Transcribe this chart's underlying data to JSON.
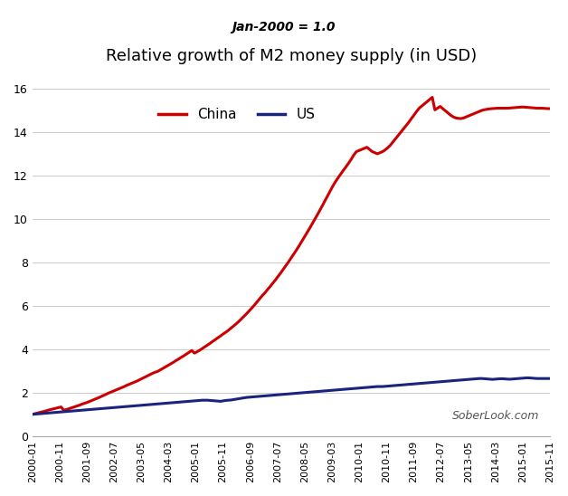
{
  "title": "Relative growth of M2 money supply (in USD)",
  "subtitle": "Jan-2000 = 1.0",
  "watermark": "SoberLook.com",
  "china_color": "#cc0000",
  "us_color": "#1a237e",
  "line_width": 2.2,
  "ylim": [
    0,
    16
  ],
  "yticks": [
    0,
    2,
    4,
    6,
    8,
    10,
    12,
    14,
    16
  ],
  "background_color": "#ffffff",
  "grid_color": "#cccccc",
  "x_labels": [
    "2000-01",
    "2000-11",
    "2001-09",
    "2002-07",
    "2003-05",
    "2004-03",
    "2005-01",
    "2005-11",
    "2006-09",
    "2007-07",
    "2008-05",
    "2009-03",
    "2010-01",
    "2010-11",
    "2011-09",
    "2012-07",
    "2013-05",
    "2014-03",
    "2015-01",
    "2015-11"
  ],
  "china_y": [
    1.0,
    1.03,
    1.06,
    1.09,
    1.12,
    1.15,
    1.19,
    1.22,
    1.25,
    1.28,
    1.31,
    1.34,
    1.19,
    1.22,
    1.26,
    1.3,
    1.34,
    1.38,
    1.42,
    1.47,
    1.51,
    1.55,
    1.6,
    1.65,
    1.7,
    1.75,
    1.8,
    1.86,
    1.91,
    1.97,
    2.02,
    2.07,
    2.12,
    2.17,
    2.22,
    2.27,
    2.33,
    2.38,
    2.43,
    2.48,
    2.53,
    2.59,
    2.65,
    2.71,
    2.77,
    2.83,
    2.89,
    2.94,
    2.98,
    3.05,
    3.12,
    3.19,
    3.26,
    3.33,
    3.4,
    3.48,
    3.55,
    3.63,
    3.7,
    3.78,
    3.86,
    3.94,
    3.82,
    3.88,
    3.95,
    4.03,
    4.11,
    4.19,
    4.27,
    4.36,
    4.44,
    4.53,
    4.61,
    4.7,
    4.78,
    4.87,
    4.97,
    5.07,
    5.17,
    5.28,
    5.4,
    5.52,
    5.64,
    5.77,
    5.9,
    6.04,
    6.18,
    6.33,
    6.47,
    6.6,
    6.75,
    6.89,
    7.04,
    7.19,
    7.35,
    7.51,
    7.68,
    7.85,
    8.02,
    8.2,
    8.38,
    8.56,
    8.75,
    8.95,
    9.15,
    9.35,
    9.55,
    9.76,
    9.97,
    10.18,
    10.4,
    10.62,
    10.85,
    11.07,
    11.3,
    11.52,
    11.72,
    11.9,
    12.07,
    12.24,
    12.4,
    12.57,
    12.75,
    12.95,
    13.1,
    13.15,
    13.2,
    13.25,
    13.3,
    13.2,
    13.1,
    13.05,
    13.0,
    13.05,
    13.1,
    13.18,
    13.28,
    13.4,
    13.55,
    13.7,
    13.85,
    14.0,
    14.15,
    14.3,
    14.45,
    14.62,
    14.78,
    14.95,
    15.1,
    15.2,
    15.3,
    15.4,
    15.5,
    15.6,
    15.02,
    15.1,
    15.18,
    15.08,
    14.98,
    14.88,
    14.78,
    14.7,
    14.65,
    14.63,
    14.62,
    14.65,
    14.7,
    14.75,
    14.8,
    14.85,
    14.9,
    14.95,
    15.0,
    15.03,
    15.05,
    15.07,
    15.08,
    15.09,
    15.1,
    15.1,
    15.1,
    15.1,
    15.1,
    15.11,
    15.12,
    15.13,
    15.14,
    15.15,
    15.15,
    15.14,
    15.13,
    15.12,
    15.11,
    15.1,
    15.1,
    15.1,
    15.09,
    15.08,
    15.08
  ],
  "us_y": [
    1.0,
    1.01,
    1.02,
    1.03,
    1.04,
    1.05,
    1.06,
    1.07,
    1.08,
    1.09,
    1.1,
    1.11,
    1.12,
    1.13,
    1.14,
    1.15,
    1.16,
    1.17,
    1.18,
    1.19,
    1.2,
    1.21,
    1.22,
    1.23,
    1.24,
    1.25,
    1.26,
    1.27,
    1.28,
    1.29,
    1.3,
    1.31,
    1.32,
    1.33,
    1.34,
    1.35,
    1.36,
    1.37,
    1.38,
    1.39,
    1.4,
    1.41,
    1.42,
    1.43,
    1.44,
    1.45,
    1.46,
    1.47,
    1.48,
    1.49,
    1.5,
    1.51,
    1.52,
    1.53,
    1.54,
    1.55,
    1.56,
    1.57,
    1.58,
    1.59,
    1.6,
    1.61,
    1.62,
    1.63,
    1.64,
    1.65,
    1.65,
    1.65,
    1.64,
    1.63,
    1.62,
    1.61,
    1.6,
    1.62,
    1.64,
    1.65,
    1.66,
    1.68,
    1.7,
    1.72,
    1.74,
    1.76,
    1.78,
    1.79,
    1.8,
    1.81,
    1.82,
    1.83,
    1.84,
    1.85,
    1.86,
    1.87,
    1.88,
    1.89,
    1.9,
    1.91,
    1.92,
    1.93,
    1.94,
    1.95,
    1.96,
    1.97,
    1.98,
    1.99,
    2.0,
    2.01,
    2.02,
    2.03,
    2.04,
    2.05,
    2.06,
    2.07,
    2.08,
    2.09,
    2.1,
    2.11,
    2.12,
    2.13,
    2.14,
    2.15,
    2.16,
    2.17,
    2.18,
    2.19,
    2.2,
    2.21,
    2.22,
    2.23,
    2.24,
    2.25,
    2.26,
    2.27,
    2.28,
    2.28,
    2.28,
    2.29,
    2.3,
    2.31,
    2.32,
    2.33,
    2.34,
    2.35,
    2.36,
    2.37,
    2.38,
    2.39,
    2.4,
    2.41,
    2.42,
    2.43,
    2.44,
    2.45,
    2.46,
    2.47,
    2.48,
    2.49,
    2.5,
    2.51,
    2.52,
    2.53,
    2.54,
    2.55,
    2.56,
    2.57,
    2.58,
    2.59,
    2.6,
    2.61,
    2.62,
    2.63,
    2.64,
    2.65,
    2.65,
    2.64,
    2.63,
    2.62,
    2.61,
    2.62,
    2.63,
    2.64,
    2.64,
    2.63,
    2.62,
    2.62,
    2.63,
    2.64,
    2.65,
    2.66,
    2.67,
    2.68,
    2.68,
    2.67,
    2.66,
    2.65,
    2.65,
    2.65,
    2.65,
    2.65,
    2.65,
    2.65,
    2.65
  ]
}
